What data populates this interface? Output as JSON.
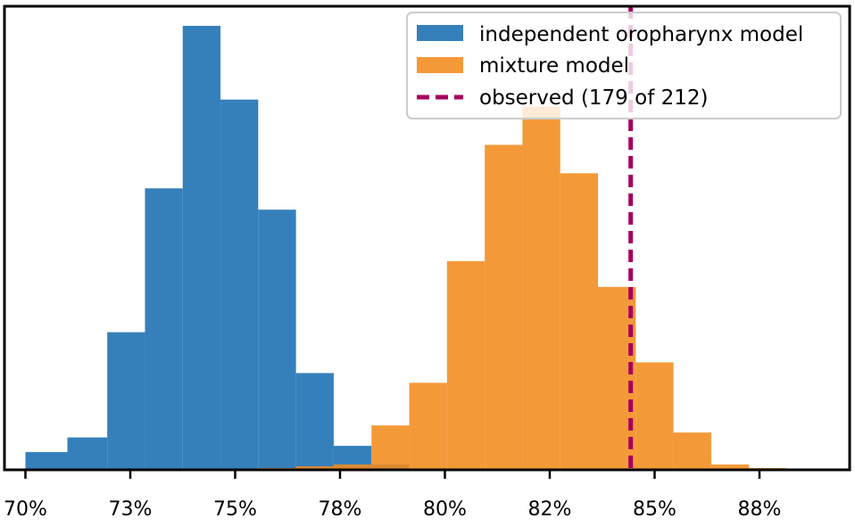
{
  "chart_data": {
    "type": "histogram",
    "xlabel": "",
    "ylabel": "",
    "xlim": [
      0.695,
      0.8965
    ],
    "ylim": [
      0,
      1
    ],
    "x_ticks": [
      0.7,
      0.725,
      0.75,
      0.775,
      0.8,
      0.825,
      0.85,
      0.875
    ],
    "x_tick_labels": [
      "70%",
      "73%",
      "75%",
      "78%",
      "80%",
      "82%",
      "85%",
      "88%"
    ],
    "y_ticks_visible": false,
    "legend_position": "top-right",
    "bin_width": 0.009,
    "series": [
      {
        "name": "independent oropharynx model",
        "color": "#3580bb",
        "opacity": 1.0,
        "bins": [
          [
            0.7,
            0.71,
            0.04
          ],
          [
            0.71,
            0.7195,
            0.073
          ],
          [
            0.7195,
            0.7285,
            0.31
          ],
          [
            0.7285,
            0.7375,
            0.634
          ],
          [
            0.7375,
            0.7465,
            1.0
          ],
          [
            0.7465,
            0.7555,
            0.834
          ],
          [
            0.7555,
            0.7645,
            0.586
          ],
          [
            0.7645,
            0.7735,
            0.218
          ],
          [
            0.7735,
            0.7825,
            0.054
          ],
          [
            0.7825,
            0.7915,
            0.012
          ]
        ]
      },
      {
        "name": "mixture model",
        "color": "#f28b1d",
        "opacity": 0.88,
        "bins": [
          [
            0.7555,
            0.7645,
            0.004
          ],
          [
            0.7645,
            0.7735,
            0.008
          ],
          [
            0.7735,
            0.7825,
            0.012
          ],
          [
            0.7825,
            0.7915,
            0.1
          ],
          [
            0.7915,
            0.8005,
            0.196
          ],
          [
            0.8005,
            0.8095,
            0.47
          ],
          [
            0.8095,
            0.8185,
            0.732
          ],
          [
            0.8185,
            0.8275,
            0.818
          ],
          [
            0.8275,
            0.8365,
            0.668
          ],
          [
            0.8365,
            0.8455,
            0.412
          ],
          [
            0.8455,
            0.8545,
            0.242
          ],
          [
            0.8545,
            0.8635,
            0.084
          ],
          [
            0.8635,
            0.8725,
            0.012
          ],
          [
            0.8725,
            0.8815,
            0.004
          ]
        ]
      }
    ],
    "reference_line": {
      "name": "observed (179 of 212)",
      "x": 0.8443,
      "color": "#a6005e",
      "style": "dashed"
    }
  }
}
